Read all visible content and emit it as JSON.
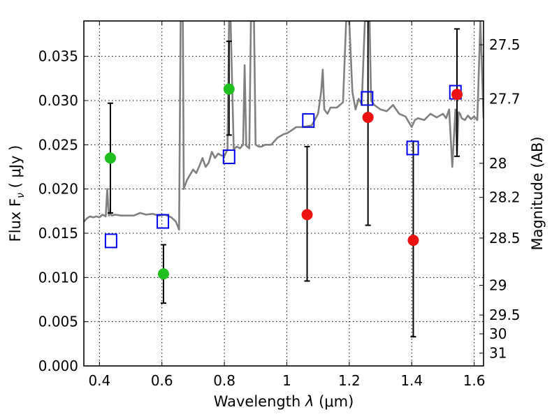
{
  "chart_data": {
    "type": "scatter",
    "xlabel_prefix": "Wavelength  ",
    "xlabel_symbol": "λ",
    "xlabel_unit": " (μm)",
    "ylabel": "Flux  F",
    "ylabel_sub": "ν",
    "ylabel_unit": "  ( μJy )",
    "y2label": "Magnitude (AB)",
    "xlim": [
      0.35,
      1.63
    ],
    "ylim": [
      0.0,
      0.039
    ],
    "grid": true,
    "xticks": [
      0.4,
      0.6,
      0.8,
      1.0,
      1.2,
      1.4,
      1.6
    ],
    "xtick_labels": [
      "0.4",
      "0.6",
      "0.8",
      "1",
      "1.2",
      "1.4",
      "1.6"
    ],
    "yticks": [
      0.0,
      0.005,
      0.01,
      0.015,
      0.02,
      0.025,
      0.03,
      0.035
    ],
    "ytick_labels": [
      "0.000",
      "0.005",
      "0.010",
      "0.015",
      "0.020",
      "0.025",
      "0.030",
      "0.035"
    ],
    "y2ticks": [
      27.5,
      27.7,
      28,
      28.2,
      28.5,
      29,
      29.5,
      30,
      31
    ],
    "y2tick_labels": [
      "27.5",
      "27.7",
      "28",
      "28.2",
      "28.5",
      "29",
      "29.5",
      "30",
      "31"
    ],
    "colors": {
      "spectrum": "#808080",
      "detection": "#1fbf1f",
      "upper": "#ee1111",
      "model": "#0000ee",
      "errorbar": "#000000"
    },
    "series": [
      {
        "name": "Template spectrum",
        "type": "line",
        "x": [
          0.35,
          0.36,
          0.37,
          0.38,
          0.39,
          0.4,
          0.41,
          0.42,
          0.425,
          0.43,
          0.435,
          0.44,
          0.45,
          0.47,
          0.49,
          0.51,
          0.53,
          0.55,
          0.57,
          0.59,
          0.61,
          0.63,
          0.645,
          0.655,
          0.66,
          0.662,
          0.664,
          0.667,
          0.67,
          0.68,
          0.69,
          0.7,
          0.71,
          0.72,
          0.73,
          0.74,
          0.75,
          0.76,
          0.77,
          0.78,
          0.79,
          0.8,
          0.81,
          0.815,
          0.82,
          0.83,
          0.84,
          0.85,
          0.86,
          0.865,
          0.87,
          0.88,
          0.885,
          0.89,
          0.895,
          0.9,
          0.91,
          0.92,
          0.93,
          0.95,
          0.97,
          0.99,
          1.0,
          1.01,
          1.03,
          1.05,
          1.08,
          1.1,
          1.11,
          1.115,
          1.12,
          1.13,
          1.14,
          1.16,
          1.18,
          1.19,
          1.2,
          1.21,
          1.22,
          1.23,
          1.24,
          1.25,
          1.255,
          1.26,
          1.265,
          1.27,
          1.28,
          1.3,
          1.32,
          1.34,
          1.36,
          1.38,
          1.4,
          1.41,
          1.42,
          1.44,
          1.46,
          1.48,
          1.5,
          1.51,
          1.52,
          1.53,
          1.54,
          1.545,
          1.55,
          1.555,
          1.56,
          1.57,
          1.58,
          1.59,
          1.6,
          1.61,
          1.62,
          1.63
        ],
        "values": [
          0.0163,
          0.0167,
          0.0169,
          0.0168,
          0.0169,
          0.0168,
          0.0171,
          0.0169,
          0.02,
          0.017,
          0.0172,
          0.017,
          0.0171,
          0.017,
          0.017,
          0.017,
          0.0173,
          0.0171,
          0.0172,
          0.017,
          0.0171,
          0.0168,
          0.0163,
          0.0154,
          0.039,
          0.039,
          0.039,
          0.039,
          0.02,
          0.021,
          0.0216,
          0.0222,
          0.0218,
          0.0226,
          0.0235,
          0.0225,
          0.023,
          0.0242,
          0.0235,
          0.024,
          0.0238,
          0.0237,
          0.0245,
          0.039,
          0.039,
          0.0245,
          0.0248,
          0.0246,
          0.025,
          0.034,
          0.0249,
          0.0246,
          0.039,
          0.039,
          0.039,
          0.025,
          0.0248,
          0.0248,
          0.025,
          0.025,
          0.0258,
          0.0262,
          0.0263,
          0.0265,
          0.027,
          0.027,
          0.0272,
          0.0285,
          0.031,
          0.0335,
          0.029,
          0.0285,
          0.0292,
          0.0292,
          0.0298,
          0.039,
          0.039,
          0.031,
          0.029,
          0.0302,
          0.0296,
          0.039,
          0.039,
          0.039,
          0.039,
          0.03,
          0.0295,
          0.029,
          0.0288,
          0.0295,
          0.0285,
          0.0282,
          0.027,
          0.0278,
          0.028,
          0.0278,
          0.0285,
          0.0281,
          0.0285,
          0.028,
          0.029,
          0.0225,
          0.029,
          0.024,
          0.0287,
          0.0285,
          0.028,
          0.0278,
          0.0283,
          0.0279,
          0.0282,
          0.0278,
          0.039,
          0.028
        ]
      },
      {
        "name": "Measured flux (green)",
        "type": "scatter",
        "x": [
          0.435,
          0.605,
          0.815
        ],
        "values": [
          0.0235,
          0.0104,
          0.0313
        ],
        "err_low": [
          0.0173,
          0.0071,
          0.0261
        ],
        "err_high": [
          0.0297,
          0.0137,
          0.0367
        ]
      },
      {
        "name": "Measured flux (red)",
        "type": "scatter",
        "x": [
          1.065,
          1.26,
          1.405,
          1.545
        ],
        "values": [
          0.0171,
          0.0281,
          0.0142,
          0.0307
        ],
        "err_low": [
          0.0096,
          0.0159,
          0.0033,
          0.0237
        ],
        "err_high": [
          0.0248,
          0.039,
          0.0254,
          0.0381
        ]
      },
      {
        "name": "Model photometry (blue squares)",
        "type": "scatter",
        "x": [
          0.437,
          0.603,
          0.815,
          1.069,
          1.257,
          1.403,
          1.54
        ],
        "values": [
          0.0141,
          0.0163,
          0.0236,
          0.0277,
          0.0302,
          0.0246,
          0.0309
        ]
      }
    ]
  }
}
